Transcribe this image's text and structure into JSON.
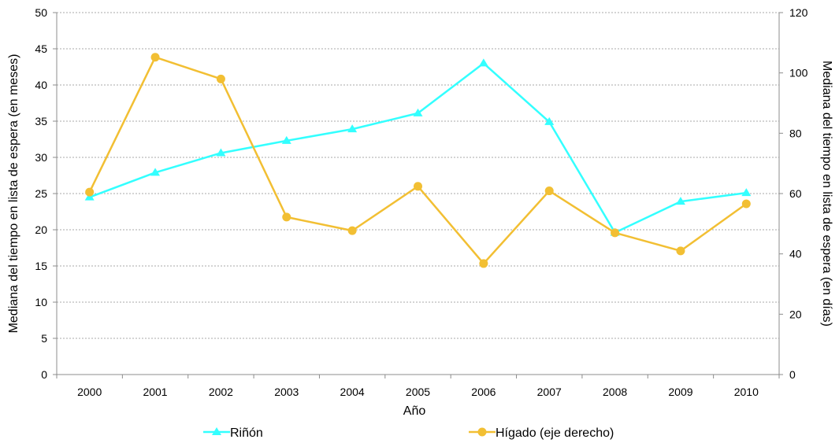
{
  "chart_data": {
    "type": "line",
    "xlabel": "Año",
    "ylabel_left": "Mediana del tiempo en lista de espera (en meses)",
    "ylabel_right": "Mediana del tiempo en lista de espera (en días)",
    "categories": [
      "2000",
      "2001",
      "2002",
      "2003",
      "2004",
      "2005",
      "2006",
      "2007",
      "2008",
      "2009",
      "2010"
    ],
    "y_left": {
      "min": 0,
      "max": 50,
      "ticks": [
        "0",
        "5",
        "10",
        "15",
        "20",
        "25",
        "30",
        "35",
        "40",
        "45",
        "50"
      ]
    },
    "y_right": {
      "min": 0,
      "max": 120,
      "ticks": [
        "0",
        "20",
        "40",
        "60",
        "80",
        "100",
        "120"
      ]
    },
    "grid": true,
    "legend_position": "bottom",
    "series": [
      {
        "name": "Riñón",
        "axis": "left",
        "color": "#33ffff",
        "marker": "triangle",
        "values": [
          24.5,
          27.9,
          30.6,
          32.3,
          33.9,
          36.1,
          43.0,
          34.9,
          19.6,
          23.9,
          25.1
        ]
      },
      {
        "name": "Hígado (eje derecho)",
        "axis": "right",
        "color": "#f2bf33",
        "marker": "circle",
        "values": [
          60.5,
          105.2,
          98.0,
          52.2,
          47.7,
          62.4,
          36.8,
          60.9,
          47.0,
          41.0,
          56.6
        ]
      }
    ]
  }
}
